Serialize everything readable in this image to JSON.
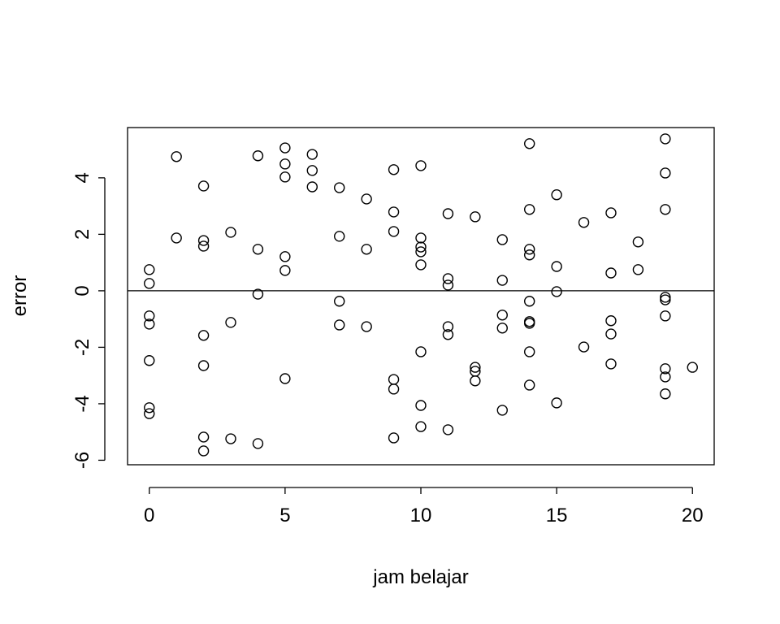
{
  "chart_data": {
    "type": "scatter",
    "xlabel": "jam belajar",
    "ylabel": "error",
    "x": [
      0,
      0,
      0,
      0,
      0,
      0,
      0,
      1,
      1,
      2,
      2,
      2,
      2,
      2,
      2,
      2,
      3,
      3,
      3,
      4,
      4,
      4,
      4,
      5,
      5,
      5,
      5,
      5,
      5,
      6,
      6,
      6,
      7,
      7,
      7,
      7,
      8,
      8,
      8,
      9,
      9,
      9,
      9,
      9,
      9,
      10,
      10,
      10,
      10,
      10,
      10,
      10,
      10,
      11,
      11,
      11,
      11,
      11,
      11,
      12,
      12,
      12,
      12,
      13,
      13,
      13,
      13,
      13,
      14,
      14,
      14,
      14,
      14,
      14,
      14,
      14,
      14,
      15,
      15,
      15,
      15,
      16,
      16,
      17,
      17,
      17,
      17,
      17,
      18,
      18,
      19,
      19,
      19,
      19,
      19,
      19,
      19,
      19,
      19,
      20
    ],
    "y": [
      0.75,
      0.26,
      -0.89,
      -1.18,
      -2.47,
      -4.14,
      -4.35,
      4.75,
      1.87,
      3.71,
      1.78,
      1.58,
      -1.58,
      -2.65,
      -5.18,
      -5.67,
      2.07,
      -1.12,
      -5.24,
      4.78,
      1.47,
      -0.12,
      -5.41,
      5.06,
      4.49,
      4.03,
      1.21,
      0.72,
      -3.11,
      4.83,
      4.26,
      3.68,
      3.65,
      1.93,
      -0.37,
      -1.21,
      3.25,
      1.47,
      -1.27,
      4.29,
      2.79,
      2.1,
      -3.14,
      -3.48,
      -5.21,
      4.43,
      1.87,
      1.55,
      1.38,
      0.92,
      -2.16,
      -4.06,
      -4.81,
      2.73,
      0.43,
      0.2,
      -1.27,
      -1.55,
      -4.92,
      2.62,
      -2.71,
      -2.85,
      -3.19,
      1.81,
      0.37,
      -0.86,
      -1.32,
      -4.23,
      5.21,
      2.88,
      1.47,
      1.27,
      -0.37,
      -1.09,
      -1.15,
      -2.16,
      -3.34,
      3.4,
      0.86,
      -0.03,
      -3.97,
      2.42,
      -1.99,
      2.76,
      0.63,
      -1.06,
      -1.53,
      -2.59,
      1.73,
      0.75,
      5.38,
      4.17,
      2.88,
      -0.23,
      -0.32,
      -0.89,
      -2.76,
      -3.05,
      -3.65,
      -2.71
    ],
    "xlim": [
      -0.8,
      20.8
    ],
    "ylim": [
      -6.16,
      5.78
    ],
    "xticks": [
      0,
      5,
      10,
      15,
      20
    ],
    "yticks": [
      -6,
      -4,
      -2,
      0,
      2,
      4
    ],
    "hline": 0,
    "color": "#000000"
  }
}
